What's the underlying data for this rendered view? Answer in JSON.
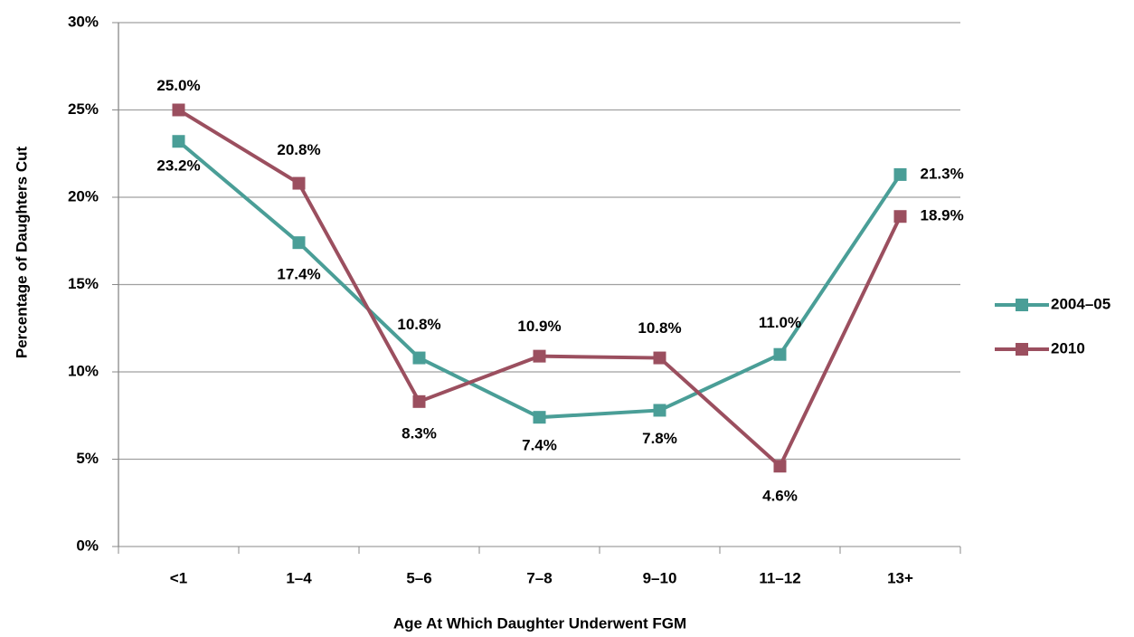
{
  "chart_data": {
    "type": "line",
    "x_label": "Age At Which Daughter Underwent FGM",
    "y_label": "Percentage of Daughters Cut",
    "categories": [
      "<1",
      "1–4",
      "5–6",
      "7–8",
      "9–10",
      "11–12",
      "13+"
    ],
    "series": [
      {
        "name": "2004–05",
        "color": "#4a9e97",
        "values": [
          23.2,
          17.4,
          10.8,
          7.4,
          7.8,
          11.0,
          21.3
        ],
        "value_labels": [
          "23.2%",
          "17.4%",
          "10.8%",
          "7.4%",
          "7.8%",
          "11.0%",
          "21.3%"
        ]
      },
      {
        "name": "2010",
        "color": "#9b4f5f",
        "values": [
          25.0,
          20.8,
          8.3,
          10.9,
          10.8,
          4.6,
          18.9
        ],
        "value_labels": [
          "25.0%",
          "20.8%",
          "8.3%",
          "10.9%",
          "10.8%",
          "4.6%",
          "18.9%"
        ]
      }
    ],
    "ylim": [
      0,
      30
    ],
    "yticks": [
      {
        "value": 0,
        "label": "0%"
      },
      {
        "value": 5,
        "label": "5%"
      },
      {
        "value": 10,
        "label": "10%"
      },
      {
        "value": 15,
        "label": "15%"
      },
      {
        "value": 20,
        "label": "20%"
      },
      {
        "value": 25,
        "label": "25%"
      },
      {
        "value": 30,
        "label": "30%"
      }
    ],
    "grid": true,
    "legend": "right"
  }
}
